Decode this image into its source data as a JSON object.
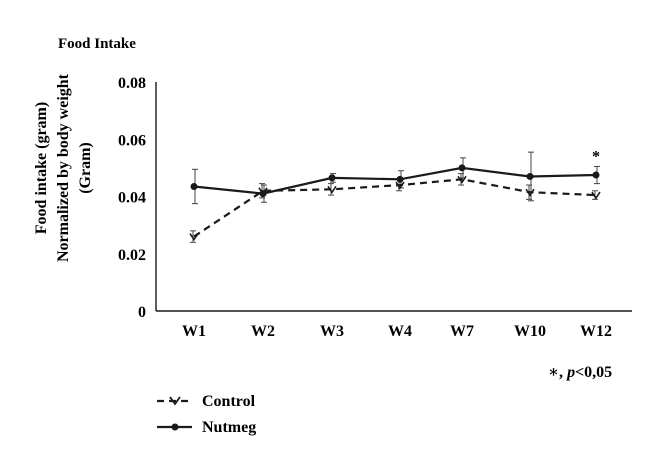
{
  "chart_data": {
    "type": "line",
    "title": "Food Intake",
    "ylabel_lines": [
      "Food intake (gram)",
      "Normalized by body weight",
      "(Gram)"
    ],
    "xlabel": "",
    "categories": [
      "W1",
      "W2",
      "W3",
      "W4",
      "W7",
      "W10",
      "W12"
    ],
    "ylim": [
      0,
      0.08
    ],
    "yticks": [
      0,
      0.02,
      0.04,
      0.06,
      0.08
    ],
    "ytick_labels": [
      "0",
      "0.02",
      "0.04",
      "0.06",
      "0.08"
    ],
    "series": [
      {
        "name": "Control",
        "style": "dashed",
        "color": "#1a1a1a",
        "values": [
          0.026,
          0.042,
          0.0425,
          0.044,
          0.046,
          0.0415,
          0.0405
        ],
        "errors": [
          0.002,
          0.0025,
          0.002,
          0.002,
          0.002,
          0.0025,
          0.0015
        ]
      },
      {
        "name": "Nutmeg",
        "style": "solid",
        "color": "#1a1a1a",
        "values": [
          0.0435,
          0.041,
          0.0465,
          0.046,
          0.05,
          0.047,
          0.0475
        ],
        "errors": [
          0.006,
          0.003,
          0.0015,
          0.003,
          0.0035,
          0.0085,
          0.003
        ]
      }
    ],
    "annotations": [
      {
        "text": "*",
        "category": "W12"
      }
    ],
    "significance_note": {
      "symbol": "∗, ",
      "p": "p",
      "rest": "<0,05"
    },
    "legend_position": "bottom-left"
  }
}
